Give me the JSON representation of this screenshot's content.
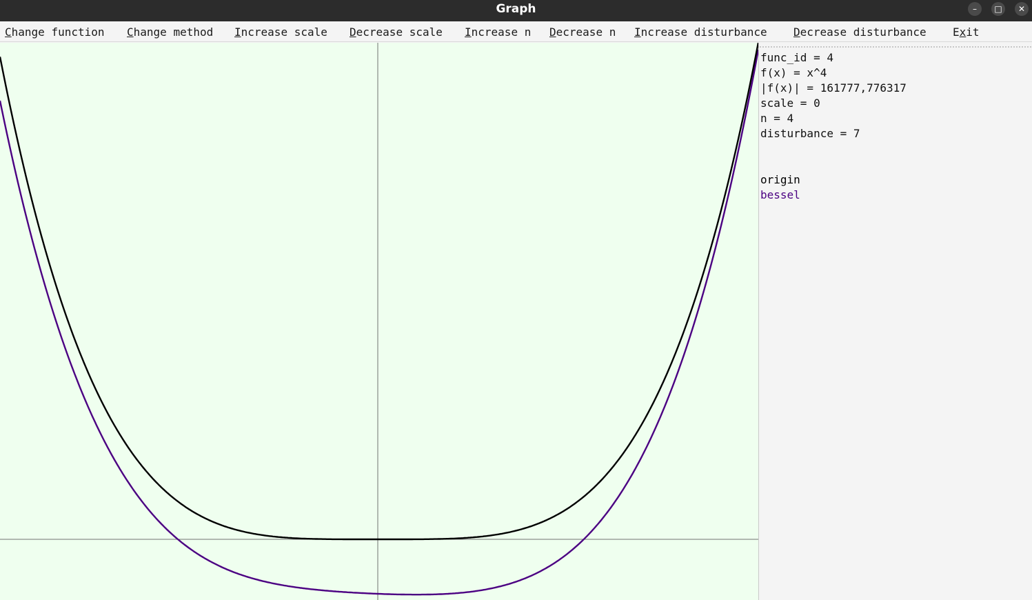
{
  "window": {
    "title": "Graph",
    "controls": {
      "minimize": "–",
      "maximize": "□",
      "close": "✕"
    }
  },
  "menu": [
    {
      "mnemonic": "C",
      "rest": "hange function"
    },
    {
      "mnemonic": "C",
      "rest": "hange method"
    },
    {
      "mnemonic": "I",
      "rest": "ncrease scale"
    },
    {
      "mnemonic": "D",
      "rest": "ecrease scale"
    },
    {
      "mnemonic": "I",
      "rest": "ncrease n"
    },
    {
      "mnemonic": "D",
      "rest": "ecrease n"
    },
    {
      "mnemonic": "I",
      "rest": "ncrease disturbance"
    },
    {
      "mnemonic": "D",
      "rest": "ecrease disturbance"
    },
    {
      "prefix": "E",
      "mnemonic": "x",
      "rest": "it"
    }
  ],
  "info": {
    "func_id": "func_id = 4",
    "fx": "f(x) = x^4",
    "norm": "|f(x)| = 161777,776317",
    "scale": "scale = 0",
    "n": "n = 4",
    "disturbance": "disturbance = 7"
  },
  "legend": {
    "origin": "origin",
    "bessel": "bessel"
  },
  "colors": {
    "plot_background": "#efffef",
    "origin": "#000000",
    "bessel": "#4b0082",
    "axis": "#707070"
  }
}
